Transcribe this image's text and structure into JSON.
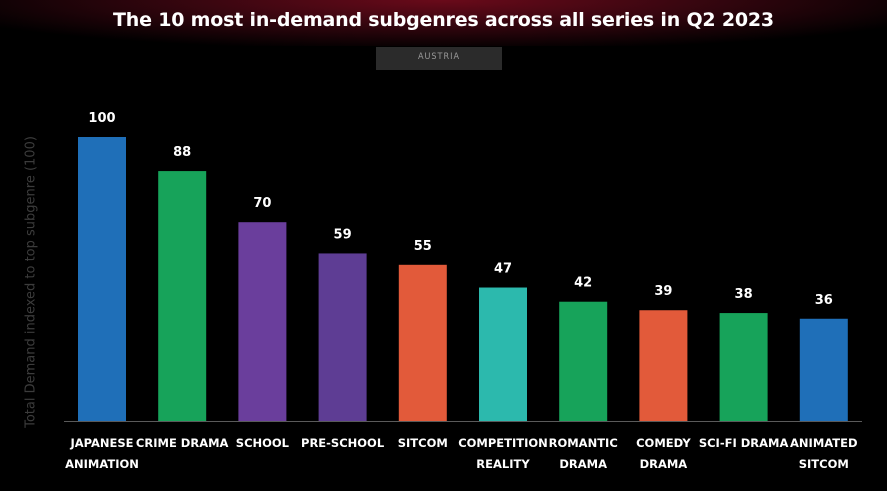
{
  "header": {
    "title": "The 10 most in-demand subgenres across all series in Q2 2023"
  },
  "filter": {
    "region": "AUSTRIA"
  },
  "chart_data": {
    "type": "bar",
    "title": "The 10 most in-demand subgenres across all series in Q2 2023",
    "ylabel": "Total Demand indexed to top subgenre (100)",
    "xlabel": "",
    "ylim": [
      0,
      100
    ],
    "grid": false,
    "categories": [
      [
        "JAPANESE",
        "ANIMATION"
      ],
      [
        "CRIME DRAMA"
      ],
      [
        "SCHOOL"
      ],
      [
        "PRE-SCHOOL"
      ],
      [
        "SITCOM"
      ],
      [
        "COMPETITION",
        "REALITY"
      ],
      [
        "ROMANTIC",
        "DRAMA"
      ],
      [
        "COMEDY",
        "DRAMA"
      ],
      [
        "SCI-FI DRAMA"
      ],
      [
        "ANIMATED",
        "SITCOM"
      ]
    ],
    "values": [
      100,
      88,
      70,
      59,
      55,
      47,
      42,
      39,
      38,
      36
    ],
    "colors": [
      "#1f6fb8",
      "#17a35a",
      "#6a3e9c",
      "#5e3d94",
      "#e25a3a",
      "#2cb9ad",
      "#17a35a",
      "#e25a3a",
      "#17a35a",
      "#1f6fb8"
    ]
  }
}
